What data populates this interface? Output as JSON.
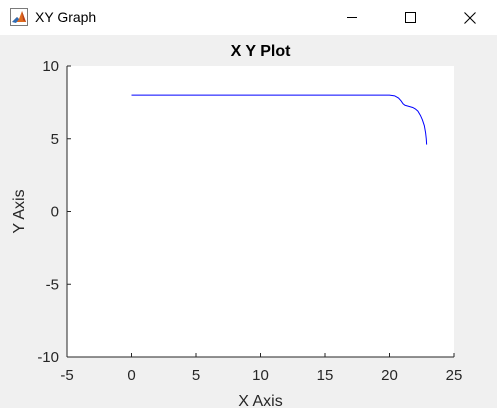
{
  "window": {
    "title": "XY Graph",
    "icon": "matlab-icon",
    "controls": {
      "minimize": "minimize-icon",
      "maximize": "maximize-icon",
      "close": "close-icon"
    }
  },
  "colors": {
    "line": "#0000ff",
    "plot_background": "#ffffff",
    "figure_background": "#f0f0f0",
    "axis": "#262626"
  },
  "chart_data": {
    "type": "line",
    "title": "X Y Plot",
    "xlabel": "X Axis",
    "ylabel": "Y Axis",
    "xlim": [
      -5,
      25
    ],
    "ylim": [
      -10,
      10
    ],
    "xticks": [
      -5,
      0,
      5,
      10,
      15,
      20,
      25
    ],
    "yticks": [
      -10,
      -5,
      0,
      5,
      10
    ],
    "grid": false,
    "legend": "none",
    "series": [
      {
        "x": [
          0,
          5,
          10,
          15,
          20,
          20.4,
          20.7,
          20.9,
          21.05,
          21.2,
          21.4,
          21.6,
          21.8,
          22.0,
          22.2,
          22.4,
          22.55,
          22.7,
          22.8,
          22.85,
          22.88
        ],
        "y": [
          8,
          8,
          8,
          8,
          8,
          7.95,
          7.8,
          7.6,
          7.4,
          7.3,
          7.25,
          7.2,
          7.15,
          7.05,
          6.9,
          6.6,
          6.3,
          5.9,
          5.4,
          5.0,
          4.6
        ]
      }
    ]
  }
}
